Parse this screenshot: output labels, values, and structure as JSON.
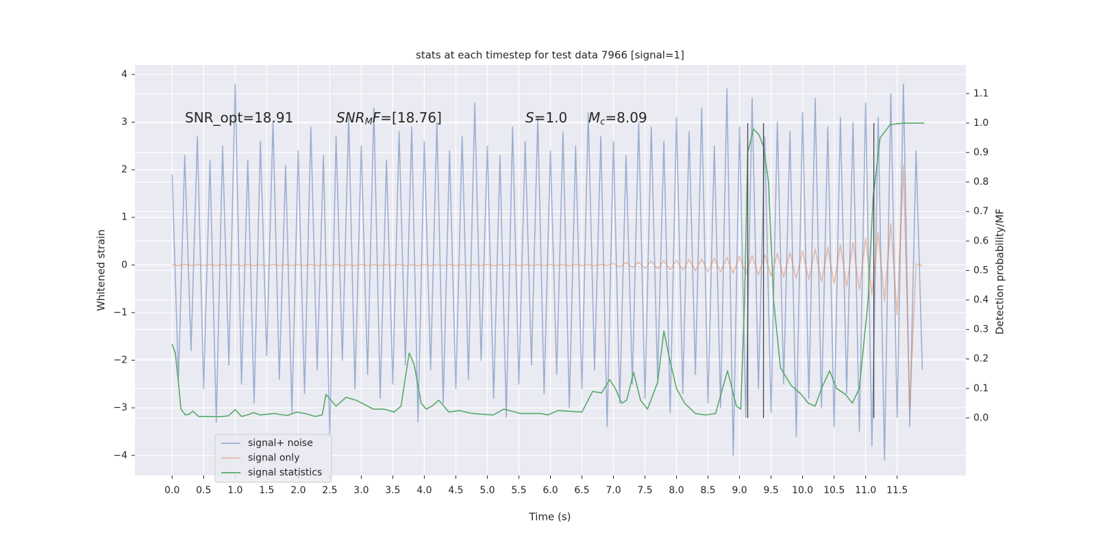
{
  "chart_data": {
    "type": "line",
    "title": "stats at each timestep for test data 7966 [signal=1]",
    "xlabel": "Time (s)",
    "ylabel": "Whitened strain",
    "y2label": "Detection probability/MF",
    "xlim": [
      -0.59,
      12.59
    ],
    "ylim": [
      -4.42,
      4.2
    ],
    "y2lim": [
      -0.195,
      1.197
    ],
    "xticks": [
      {
        "value": 0,
        "label": "0.0"
      },
      0.5,
      {
        "value": 1,
        "label": "1.0"
      },
      1.5,
      {
        "value": 2,
        "label": "2.0"
      },
      2.5,
      {
        "value": 3,
        "label": "3.0"
      },
      3.5,
      {
        "value": 4,
        "label": "4.0"
      },
      4.5,
      {
        "value": 5,
        "label": "5.0"
      },
      5.5,
      {
        "value": 6,
        "label": "6.0"
      },
      6.5,
      {
        "value": 7,
        "label": "7.0"
      },
      7.5,
      {
        "value": 8,
        "label": "8.0"
      },
      8.5,
      {
        "value": 9,
        "label": "9.0"
      },
      9.5,
      {
        "value": 10,
        "label": "10.0"
      },
      10.5,
      {
        "value": 11,
        "label": "11.0"
      },
      11.5
    ],
    "yticks": [
      {
        "value": -4,
        "label": "−4"
      },
      {
        "value": -3,
        "label": "−3"
      },
      {
        "value": -2,
        "label": "−2"
      },
      {
        "value": -1,
        "label": "−1"
      },
      0,
      1,
      2,
      3,
      4
    ],
    "y2ticks": [
      {
        "value": 0,
        "label": "0.0"
      },
      0.1,
      0.2,
      0.3,
      0.4,
      0.5,
      0.6,
      0.7,
      0.8,
      0.9,
      {
        "value": 1,
        "label": "1.0"
      },
      1.1
    ],
    "grid": true,
    "legend": "lower left",
    "x": [
      0.0,
      0.1,
      0.2,
      0.3,
      0.4,
      0.5,
      0.6,
      0.7,
      0.8,
      0.9,
      1.0,
      1.1,
      1.2,
      1.3,
      1.4,
      1.5,
      1.6,
      1.7,
      1.8,
      1.9,
      2.0,
      2.1,
      2.2,
      2.3,
      2.4,
      2.5,
      2.6,
      2.7,
      2.8,
      2.9,
      3.0,
      3.1,
      3.2,
      3.3,
      3.4,
      3.5,
      3.6,
      3.7,
      3.8,
      3.9,
      4.0,
      4.1,
      4.2,
      4.3,
      4.4,
      4.5,
      4.6,
      4.7,
      4.8,
      4.9,
      5.0,
      5.1,
      5.2,
      5.3,
      5.4,
      5.5,
      5.6,
      5.7,
      5.8,
      5.9,
      6.0,
      6.1,
      6.2,
      6.3,
      6.4,
      6.5,
      6.6,
      6.7,
      6.8,
      6.9,
      7.0,
      7.1,
      7.2,
      7.3,
      7.4,
      7.5,
      7.6,
      7.7,
      7.8,
      7.9,
      8.0,
      8.1,
      8.2,
      8.3,
      8.4,
      8.5,
      8.6,
      8.7,
      8.8,
      8.9,
      9.0,
      9.1,
      9.2,
      9.3,
      9.4,
      9.5,
      9.6,
      9.7,
      9.8,
      9.9,
      10.0,
      10.1,
      10.2,
      10.3,
      10.4,
      10.5,
      10.6,
      10.7,
      10.8,
      10.9,
      11.0,
      11.1,
      11.2,
      11.3,
      11.4,
      11.5,
      11.6,
      11.7,
      11.8,
      11.9
    ],
    "series": [
      {
        "name": "signal+ noise",
        "color": "#4c72b0",
        "alpha": 0.5,
        "values": [
          1.9,
          -2.4,
          2.3,
          -1.8,
          2.7,
          -2.6,
          2.2,
          -3.3,
          2.5,
          -2.1,
          3.8,
          -2.5,
          2.2,
          -2.9,
          2.6,
          -1.9,
          3.0,
          -2.4,
          2.1,
          -3.1,
          2.4,
          -2.7,
          2.9,
          -2.2,
          2.3,
          -3.6,
          2.7,
          -2.0,
          3.1,
          -2.6,
          2.5,
          -2.3,
          3.3,
          -2.8,
          2.2,
          -2.5,
          2.8,
          -2.1,
          2.9,
          -3.3,
          2.6,
          -2.2,
          3.0,
          -2.9,
          2.4,
          -2.6,
          2.7,
          -2.4,
          3.4,
          -2.0,
          2.5,
          -2.8,
          2.3,
          -3.2,
          2.9,
          -2.5,
          2.6,
          -2.1,
          3.1,
          -2.7,
          2.4,
          -2.3,
          2.8,
          -3.0,
          2.5,
          -2.6,
          3.2,
          -2.2,
          2.7,
          -3.4,
          2.6,
          -2.9,
          2.3,
          -2.5,
          3.0,
          -2.8,
          2.9,
          -2.4,
          2.6,
          -3.1,
          3.1,
          -2.7,
          2.8,
          -2.3,
          3.3,
          -2.9,
          2.5,
          -3.0,
          3.7,
          -4.0,
          2.9,
          -3.2,
          3.5,
          -2.6,
          2.7,
          -3.1,
          3.0,
          -2.5,
          2.8,
          -3.6,
          3.2,
          -2.8,
          3.5,
          -3.0,
          2.9,
          -3.4,
          3.1,
          -2.7,
          3.0,
          -3.5,
          3.4,
          -3.8,
          3.1,
          -4.1,
          3.6,
          -3.2,
          3.8,
          -3.4,
          2.4,
          -2.2
        ]
      },
      {
        "name": "signal only",
        "color": "#dd8452",
        "alpha": 0.5,
        "values": [
          0.01,
          -0.01,
          0.01,
          -0.01,
          0.01,
          -0.01,
          0.01,
          -0.01,
          0.01,
          -0.01,
          0.01,
          -0.01,
          0.01,
          -0.01,
          0.01,
          -0.01,
          0.01,
          -0.01,
          0.01,
          -0.01,
          0.01,
          -0.01,
          0.01,
          -0.01,
          0.01,
          -0.01,
          0.01,
          -0.01,
          0.01,
          -0.01,
          0.01,
          -0.01,
          0.01,
          -0.01,
          0.01,
          -0.01,
          0.01,
          -0.01,
          0.01,
          -0.01,
          0.01,
          -0.01,
          0.01,
          -0.01,
          0.01,
          -0.01,
          0.01,
          -0.01,
          0.01,
          -0.01,
          0.01,
          -0.01,
          0.01,
          -0.01,
          0.01,
          -0.01,
          0.01,
          -0.01,
          0.01,
          -0.01,
          0.01,
          -0.01,
          0.01,
          -0.01,
          0.01,
          -0.01,
          0.01,
          -0.01,
          0.01,
          -0.01,
          0.03,
          -0.04,
          0.05,
          -0.05,
          0.06,
          -0.07,
          0.08,
          -0.08,
          0.09,
          -0.1,
          0.1,
          -0.11,
          0.12,
          -0.12,
          0.13,
          -0.14,
          0.14,
          -0.15,
          0.16,
          -0.17,
          0.18,
          -0.19,
          0.2,
          -0.21,
          0.22,
          -0.23,
          0.24,
          -0.25,
          0.26,
          -0.28,
          0.29,
          -0.31,
          0.33,
          -0.35,
          0.37,
          -0.39,
          0.42,
          -0.45,
          0.48,
          -0.52,
          0.56,
          -0.62,
          0.68,
          -0.76,
          0.87,
          -1.05,
          2.1,
          -3.0,
          0.02,
          -0.01
        ]
      },
      {
        "name": "signal statistics",
        "color": "#55a868",
        "axis": "y2",
        "x": [
          0.0,
          0.05,
          0.1,
          0.14,
          0.21,
          0.27,
          0.33,
          0.42,
          0.53,
          0.75,
          0.89,
          1.0,
          1.1,
          1.19,
          1.29,
          1.4,
          1.62,
          1.83,
          1.97,
          2.11,
          2.27,
          2.38,
          2.44,
          2.6,
          2.76,
          2.92,
          3.19,
          3.36,
          3.52,
          3.63,
          3.76,
          3.84,
          3.95,
          4.03,
          4.12,
          4.23,
          4.39,
          4.55,
          4.77,
          5.09,
          5.26,
          5.53,
          5.85,
          5.96,
          6.12,
          6.5,
          6.67,
          6.81,
          6.94,
          7.03,
          7.13,
          7.21,
          7.32,
          7.43,
          7.54,
          7.7,
          7.8,
          7.89,
          8.0,
          8.13,
          8.3,
          8.46,
          8.62,
          8.81,
          8.95,
          9.02,
          9.08,
          9.13,
          9.22,
          9.31,
          9.38,
          9.46,
          9.54,
          9.65,
          9.82,
          9.98,
          10.09,
          10.2,
          10.3,
          10.43,
          10.54,
          10.68,
          10.79,
          10.9,
          11.04,
          11.12,
          11.23,
          11.39,
          11.61,
          11.93
        ],
        "values": [
          0.25,
          0.22,
          0.12,
          0.03,
          0.01,
          0.013,
          0.023,
          0.005,
          0.005,
          0.004,
          0.007,
          0.028,
          0.005,
          0.01,
          0.018,
          0.01,
          0.015,
          0.008,
          0.02,
          0.015,
          0.005,
          0.01,
          0.08,
          0.04,
          0.07,
          0.06,
          0.03,
          0.03,
          0.02,
          0.04,
          0.22,
          0.18,
          0.05,
          0.03,
          0.04,
          0.06,
          0.02,
          0.025,
          0.015,
          0.01,
          0.03,
          0.015,
          0.015,
          0.01,
          0.025,
          0.02,
          0.09,
          0.085,
          0.13,
          0.1,
          0.05,
          0.06,
          0.155,
          0.06,
          0.03,
          0.12,
          0.295,
          0.2,
          0.1,
          0.05,
          0.015,
          0.01,
          0.015,
          0.16,
          0.04,
          0.03,
          0.4,
          0.9,
          0.98,
          0.96,
          0.92,
          0.8,
          0.4,
          0.17,
          0.11,
          0.08,
          0.05,
          0.04,
          0.1,
          0.16,
          0.1,
          0.08,
          0.05,
          0.1,
          0.4,
          0.75,
          0.95,
          0.995,
          1.0,
          1.0
        ]
      }
    ],
    "vlines": {
      "x": [
        9.13,
        9.38,
        11.13
      ],
      "ymin": 0,
      "ymax": 1,
      "color": "#444444",
      "axis": "y2"
    },
    "annotations": [
      [
        "SNR_opt=18.91"
      ],
      [
        "SNR",
        "M",
        "F",
        "=[18.76]"
      ],
      [
        "S",
        "=1.0"
      ],
      [
        "M",
        "c",
        "=8.09"
      ]
    ]
  }
}
